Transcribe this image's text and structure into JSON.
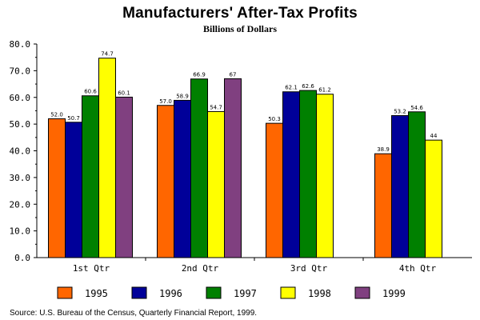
{
  "chart_data": {
    "type": "bar",
    "title": "Manufacturers' After-Tax Profits",
    "subtitle": "Billions of Dollars",
    "xlabel": "",
    "ylabel": "",
    "ylim": [
      0,
      80
    ],
    "yticks": [
      "0.0",
      "10.0",
      "20.0",
      "30.0",
      "40.0",
      "50.0",
      "60.0",
      "70.0",
      "80.0"
    ],
    "categories": [
      "1st Qtr",
      "2nd Qtr",
      "3rd Qtr",
      "4th Qtr"
    ],
    "series": [
      {
        "name": "1995",
        "color": "#ff6600",
        "values": [
          52.0,
          57.0,
          50.3,
          38.9
        ],
        "labels": [
          "52.0",
          "57.0",
          "50.3",
          "38.9"
        ]
      },
      {
        "name": "1996",
        "color": "#000099",
        "values": [
          50.7,
          58.9,
          62.1,
          53.2
        ],
        "labels": [
          "50.7",
          "58.9",
          "62.1",
          "53.2"
        ]
      },
      {
        "name": "1997",
        "color": "#008000",
        "values": [
          60.6,
          66.9,
          62.6,
          54.6
        ],
        "labels": [
          "60.6",
          "66.9",
          "62.6",
          "54.6"
        ]
      },
      {
        "name": "1998",
        "color": "#ffff00",
        "values": [
          74.7,
          54.7,
          61.2,
          44
        ],
        "labels": [
          "74.7",
          "54.7",
          "61.2",
          "44"
        ]
      },
      {
        "name": "1999",
        "color": "#804080",
        "values": [
          60.1,
          67,
          null,
          null
        ],
        "labels": [
          "60.1",
          "67",
          "",
          ""
        ]
      }
    ],
    "legend_position": "bottom",
    "grid": false
  },
  "source": "Source:  U.S. Bureau of the Census, Quarterly Financial Report, 1999."
}
